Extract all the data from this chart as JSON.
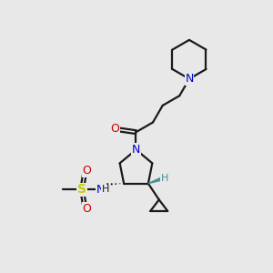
{
  "bg_color": "#e8e8e8",
  "bond_color": "#1a1a1a",
  "nitrogen_color": "#0000cc",
  "oxygen_color": "#cc0000",
  "sulfur_color": "#cccc00",
  "teal_color": "#4a8f8f",
  "line_width": 1.6,
  "fig_width": 3.0,
  "fig_height": 3.0,
  "dpi": 100,
  "xlim": [
    0,
    10
  ],
  "ylim": [
    0,
    10
  ]
}
